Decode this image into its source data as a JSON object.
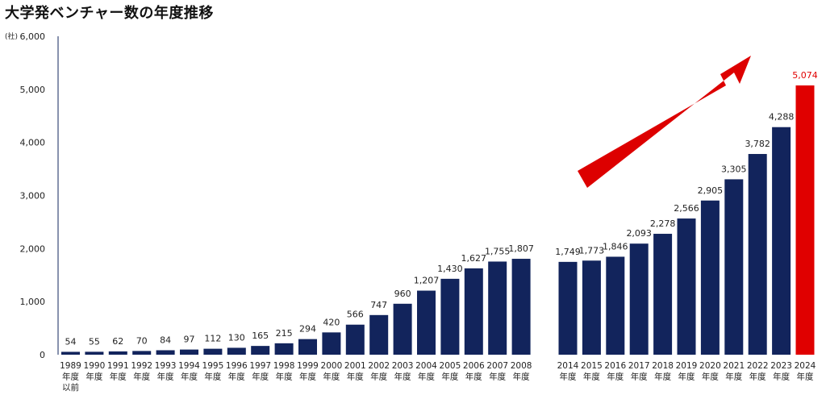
{
  "chart_data": {
    "type": "bar",
    "title": "大学発ベンチャー数の年度推移",
    "y_unit": "(社)",
    "ylim": [
      0,
      6000
    ],
    "yticks": [
      "0",
      "1,000",
      "2,000",
      "3,000",
      "4,000",
      "5,000",
      "6,000"
    ],
    "grid": false,
    "categories": [
      [
        "1989",
        "年度",
        "以前"
      ],
      [
        "1990",
        "年度"
      ],
      [
        "1991",
        "年度"
      ],
      [
        "1992",
        "年度"
      ],
      [
        "1993",
        "年度"
      ],
      [
        "1994",
        "年度"
      ],
      [
        "1995",
        "年度"
      ],
      [
        "1996",
        "年度"
      ],
      [
        "1997",
        "年度"
      ],
      [
        "1998",
        "年度"
      ],
      [
        "1999",
        "年度"
      ],
      [
        "2000",
        "年度"
      ],
      [
        "2001",
        "年度"
      ],
      [
        "2002",
        "年度"
      ],
      [
        "2003",
        "年度"
      ],
      [
        "2004",
        "年度"
      ],
      [
        "2005",
        "年度"
      ],
      [
        "2006",
        "年度"
      ],
      [
        "2007",
        "年度"
      ],
      [
        "2008",
        "年度"
      ],
      [
        "2014",
        "年度"
      ],
      [
        "2015",
        "年度"
      ],
      [
        "2016",
        "年度"
      ],
      [
        "2017",
        "年度"
      ],
      [
        "2018",
        "年度"
      ],
      [
        "2019",
        "年度"
      ],
      [
        "2020",
        "年度"
      ],
      [
        "2021",
        "年度"
      ],
      [
        "2022",
        "年度"
      ],
      [
        "2023",
        "年度"
      ],
      [
        "2024",
        "年度"
      ]
    ],
    "values": [
      54,
      55,
      62,
      70,
      84,
      97,
      112,
      130,
      165,
      215,
      294,
      420,
      566,
      747,
      960,
      1207,
      1430,
      1627,
      1755,
      1807,
      1749,
      1773,
      1846,
      2093,
      2278,
      2566,
      2905,
      3305,
      3782,
      4288,
      5074
    ],
    "value_labels": [
      "54",
      "55",
      "62",
      "70",
      "84",
      "97",
      "112",
      "130",
      "165",
      "215",
      "294",
      "420",
      "566",
      "747",
      "960",
      "1,207",
      "1,430",
      "1,627",
      "1,755",
      "1,807",
      "1,749",
      "1,773",
      "1,846",
      "2,093",
      "2,278",
      "2,566",
      "2,905",
      "3,305",
      "3,782",
      "4,288",
      "5,074"
    ],
    "gap_after_category": "2008",
    "highlight_category": "2024",
    "colors": {
      "bar": "#12245c",
      "highlight": "#e00000",
      "highlight_label": "#e00000",
      "arrow": "#dd0000",
      "axis": "#12245c"
    },
    "annotations": [
      {
        "type": "arrow",
        "direction": "up-right",
        "meaning": "increasing trend"
      }
    ]
  }
}
